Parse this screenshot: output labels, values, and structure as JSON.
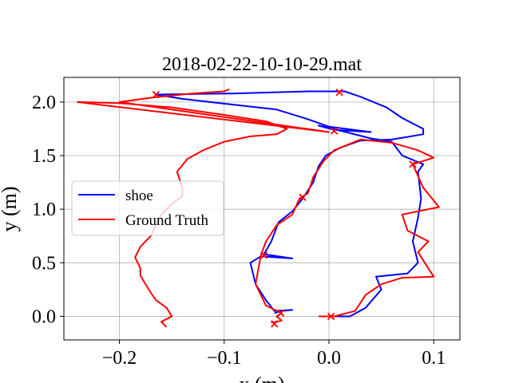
{
  "chart_data": {
    "type": "line",
    "title": "2018-02-22-10-10-29.mat",
    "xlabel": "x (m)",
    "ylabel": "y (m)",
    "xlim": [
      -0.253,
      0.125
    ],
    "ylim": [
      -0.22,
      2.23
    ],
    "xticks": [
      -0.2,
      -0.1,
      0.0,
      0.1
    ],
    "xtick_labels": [
      "−0.2",
      "−0.1",
      "0.0",
      "0.1"
    ],
    "yticks": [
      0.0,
      0.5,
      1.0,
      1.5,
      2.0
    ],
    "ytick_labels": [
      "0.0",
      "0.5",
      "1.0",
      "1.5",
      "2.0"
    ],
    "grid": true,
    "legend_position": "center-left",
    "series": [
      {
        "name": "shoe",
        "color": "#0000ff",
        "points": [
          [
            -0.052,
            0.03
          ],
          [
            -0.045,
            0.05
          ],
          [
            -0.035,
            0.06
          ],
          [
            -0.052,
            0.05
          ],
          [
            -0.06,
            0.15
          ],
          [
            -0.07,
            0.3
          ],
          [
            -0.075,
            0.5
          ],
          [
            -0.065,
            0.56
          ],
          [
            -0.035,
            0.54
          ],
          [
            -0.062,
            0.58
          ],
          [
            -0.055,
            0.7
          ],
          [
            -0.048,
            0.88
          ],
          [
            -0.035,
            0.98
          ],
          [
            -0.025,
            1.1
          ],
          [
            -0.015,
            1.25
          ],
          [
            -0.01,
            1.4
          ],
          [
            -0.003,
            1.5
          ],
          [
            0.01,
            1.57
          ],
          [
            0.03,
            1.64
          ],
          [
            0.06,
            1.65
          ],
          [
            0.09,
            1.7
          ],
          [
            0.09,
            1.75
          ],
          [
            0.07,
            1.85
          ],
          [
            0.055,
            1.95
          ],
          [
            0.03,
            2.05
          ],
          [
            0.015,
            2.1
          ],
          [
            -0.02,
            2.1
          ],
          [
            -0.09,
            2.08
          ],
          [
            -0.165,
            2.07
          ],
          [
            -0.14,
            2.03
          ],
          [
            -0.05,
            1.93
          ],
          [
            -0.02,
            1.84
          ],
          [
            0.0,
            1.77
          ],
          [
            0.04,
            1.72
          ],
          [
            0.005,
            1.74
          ],
          [
            -0.01,
            1.78
          ],
          [
            0.0,
            1.76
          ],
          [
            0.04,
            1.66
          ],
          [
            0.06,
            1.63
          ],
          [
            0.07,
            1.5
          ],
          [
            0.09,
            1.42
          ],
          [
            0.085,
            1.35
          ],
          [
            0.088,
            1.1
          ],
          [
            0.085,
            0.92
          ],
          [
            0.08,
            0.7
          ],
          [
            0.085,
            0.5
          ],
          [
            0.075,
            0.4
          ],
          [
            0.055,
            0.38
          ],
          [
            0.045,
            0.37
          ],
          [
            0.05,
            0.25
          ],
          [
            0.035,
            0.08
          ],
          [
            0.02,
            0.0
          ],
          [
            0.005,
            0.0
          ]
        ]
      },
      {
        "name": "Ground Truth",
        "color": "#ff0000",
        "points": [
          [
            -0.055,
            -0.06
          ],
          [
            -0.045,
            -0.04
          ],
          [
            -0.05,
            0.0
          ],
          [
            -0.045,
            0.03
          ],
          [
            -0.06,
            0.1
          ],
          [
            -0.07,
            0.3
          ],
          [
            -0.065,
            0.57
          ],
          [
            -0.06,
            0.7
          ],
          [
            -0.05,
            0.85
          ],
          [
            -0.035,
            0.95
          ],
          [
            -0.028,
            1.1
          ],
          [
            -0.02,
            1.15
          ],
          [
            -0.015,
            1.3
          ],
          [
            -0.005,
            1.45
          ],
          [
            0.005,
            1.55
          ],
          [
            0.03,
            1.65
          ],
          [
            0.06,
            1.62
          ],
          [
            0.085,
            1.55
          ],
          [
            0.1,
            1.48
          ],
          [
            0.08,
            1.42
          ],
          [
            0.09,
            1.2
          ],
          [
            0.105,
            1.02
          ],
          [
            0.07,
            0.95
          ],
          [
            0.075,
            0.8
          ],
          [
            0.095,
            0.7
          ],
          [
            0.085,
            0.6
          ],
          [
            0.1,
            0.37
          ],
          [
            0.07,
            0.36
          ],
          [
            0.05,
            0.3
          ],
          [
            0.035,
            0.2
          ],
          [
            0.025,
            0.05
          ],
          [
            0.005,
            0.0
          ],
          [
            -0.01,
            0.0
          ]
        ]
      },
      {
        "name": "",
        "color": "#ff0000",
        "points": [
          [
            -0.155,
            -0.1
          ],
          [
            -0.16,
            -0.05
          ],
          [
            -0.15,
            0.0
          ],
          [
            -0.155,
            0.08
          ],
          [
            -0.165,
            0.15
          ],
          [
            -0.17,
            0.22
          ],
          [
            -0.175,
            0.3
          ],
          [
            -0.18,
            0.38
          ],
          [
            -0.18,
            0.45
          ],
          [
            -0.185,
            0.55
          ],
          [
            -0.18,
            0.65
          ],
          [
            -0.17,
            0.75
          ],
          [
            -0.165,
            0.85
          ],
          [
            -0.16,
            0.95
          ],
          [
            -0.15,
            1.05
          ],
          [
            -0.14,
            1.12
          ],
          [
            -0.14,
            1.2
          ],
          [
            -0.145,
            1.35
          ],
          [
            -0.135,
            1.47
          ],
          [
            -0.12,
            1.55
          ],
          [
            -0.1,
            1.63
          ],
          [
            -0.075,
            1.68
          ],
          [
            -0.05,
            1.7
          ],
          [
            -0.04,
            1.75
          ],
          [
            -0.06,
            1.82
          ],
          [
            -0.1,
            1.88
          ],
          [
            -0.15,
            1.95
          ],
          [
            -0.2,
            1.99
          ],
          [
            -0.24,
            2.0
          ],
          [
            0.0,
            1.72
          ],
          [
            -0.2,
            2.0
          ],
          [
            -0.17,
            2.04
          ],
          [
            -0.13,
            2.08
          ],
          [
            -0.1,
            2.1
          ],
          [
            -0.095,
            2.12
          ]
        ]
      }
    ],
    "markers": [
      [
        -0.052,
        -0.07
      ],
      [
        -0.046,
        0.03
      ],
      [
        -0.062,
        0.57
      ],
      [
        -0.025,
        1.11
      ],
      [
        0.005,
        1.73
      ],
      [
        0.08,
        1.42
      ],
      [
        0.01,
        2.09
      ],
      [
        -0.165,
        2.07
      ],
      [
        0.002,
        0.0
      ]
    ]
  }
}
